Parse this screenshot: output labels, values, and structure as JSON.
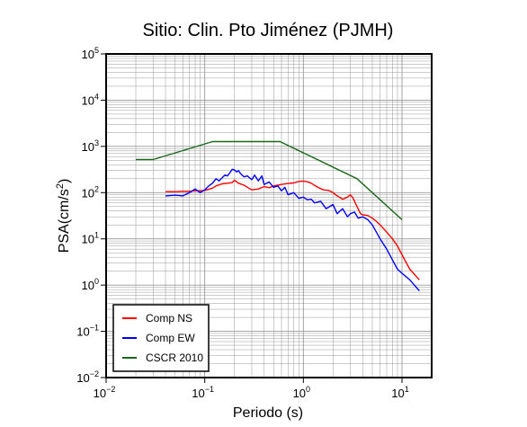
{
  "chart_data": {
    "type": "line",
    "title": "Sitio: Clin. Pto Jiménez (PJMH)",
    "xlabel": "Periodo (s)",
    "ylabel_main": "PSA(cm/s",
    "ylabel_sup": "2",
    "ylabel_end": ")",
    "x_scale": "log",
    "y_scale": "log",
    "xlim": [
      0.01,
      20
    ],
    "ylim": [
      0.01,
      100000
    ],
    "grid": true,
    "legend_position": "bottom-left",
    "x_ticks": [
      {
        "base": "10",
        "exp": "−2",
        "value": 0.01
      },
      {
        "base": "10",
        "exp": "−1",
        "value": 0.1
      },
      {
        "base": "10",
        "exp": "0",
        "value": 1
      },
      {
        "base": "10",
        "exp": "1",
        "value": 10
      }
    ],
    "y_ticks": [
      {
        "base": "10",
        "exp": "−2",
        "value": 0.01
      },
      {
        "base": "10",
        "exp": "−1",
        "value": 0.1
      },
      {
        "base": "10",
        "exp": "0",
        "value": 1
      },
      {
        "base": "10",
        "exp": "1",
        "value": 10
      },
      {
        "base": "10",
        "exp": "2",
        "value": 100
      },
      {
        "base": "10",
        "exp": "3",
        "value": 1000
      },
      {
        "base": "10",
        "exp": "4",
        "value": 10000
      },
      {
        "base": "10",
        "exp": "5",
        "value": 100000
      }
    ],
    "series": [
      {
        "name": "Comp NS",
        "color": "#ff0000",
        "x": [
          0.04,
          0.05,
          0.06,
          0.07,
          0.08,
          0.09,
          0.1,
          0.11,
          0.12,
          0.13,
          0.15,
          0.17,
          0.19,
          0.2,
          0.22,
          0.25,
          0.28,
          0.3,
          0.35,
          0.4,
          0.45,
          0.5,
          0.6,
          0.7,
          0.8,
          0.9,
          1.0,
          1.1,
          1.2,
          1.4,
          1.6,
          1.8,
          2.0,
          2.2,
          2.5,
          2.8,
          3.0,
          3.2,
          3.5,
          3.8,
          4.0,
          4.5,
          5.0,
          5.5,
          6.0,
          7.0,
          8.0,
          9.0,
          10.0,
          12.0,
          15.0
        ],
        "y": [
          105,
          105,
          107,
          107,
          110,
          110,
          112,
          118,
          125,
          140,
          155,
          160,
          165,
          185,
          160,
          145,
          125,
          115,
          120,
          135,
          128,
          140,
          150,
          158,
          162,
          175,
          178,
          172,
          160,
          130,
          115,
          112,
          100,
          85,
          72,
          80,
          90,
          75,
          50,
          35,
          33,
          32,
          28,
          24,
          20,
          14,
          10,
          7,
          4.5,
          2.2,
          1.3
        ]
      },
      {
        "name": "Comp EW",
        "color": "#0000ff",
        "x": [
          0.04,
          0.05,
          0.06,
          0.07,
          0.08,
          0.09,
          0.1,
          0.11,
          0.12,
          0.13,
          0.14,
          0.15,
          0.16,
          0.17,
          0.18,
          0.19,
          0.2,
          0.21,
          0.22,
          0.23,
          0.25,
          0.27,
          0.3,
          0.32,
          0.35,
          0.38,
          0.4,
          0.45,
          0.5,
          0.55,
          0.6,
          0.65,
          0.7,
          0.8,
          0.9,
          1.0,
          1.1,
          1.2,
          1.3,
          1.5,
          1.7,
          2.0,
          2.2,
          2.5,
          2.8,
          3.0,
          3.3,
          3.6,
          4.0,
          4.5,
          5.0,
          5.5,
          6.0,
          7.0,
          8.0,
          9.0,
          10.0,
          12.0,
          15.0
        ],
        "y": [
          85,
          88,
          85,
          100,
          120,
          100,
          115,
          140,
          160,
          200,
          180,
          210,
          240,
          230,
          270,
          320,
          310,
          280,
          300,
          260,
          220,
          230,
          190,
          240,
          180,
          230,
          150,
          170,
          130,
          140,
          110,
          130,
          90,
          100,
          75,
          80,
          70,
          72,
          60,
          65,
          45,
          55,
          35,
          45,
          30,
          35,
          38,
          28,
          30,
          26,
          20,
          14,
          10,
          6,
          3.5,
          2.2,
          1.8,
          1.3,
          0.75
        ]
      },
      {
        "name": "CSCR 2010",
        "color": "#1a661a",
        "x": [
          0.02,
          0.03,
          0.12,
          0.58,
          3.5,
          10.0
        ],
        "y": [
          520,
          520,
          1270,
          1270,
          200,
          26
        ]
      }
    ]
  },
  "legend": {
    "items": [
      {
        "label": "Comp NS",
        "color": "#ff0000"
      },
      {
        "label": "Comp EW",
        "color": "#0000ff"
      },
      {
        "label": "CSCR 2010",
        "color": "#1a661a"
      }
    ]
  }
}
